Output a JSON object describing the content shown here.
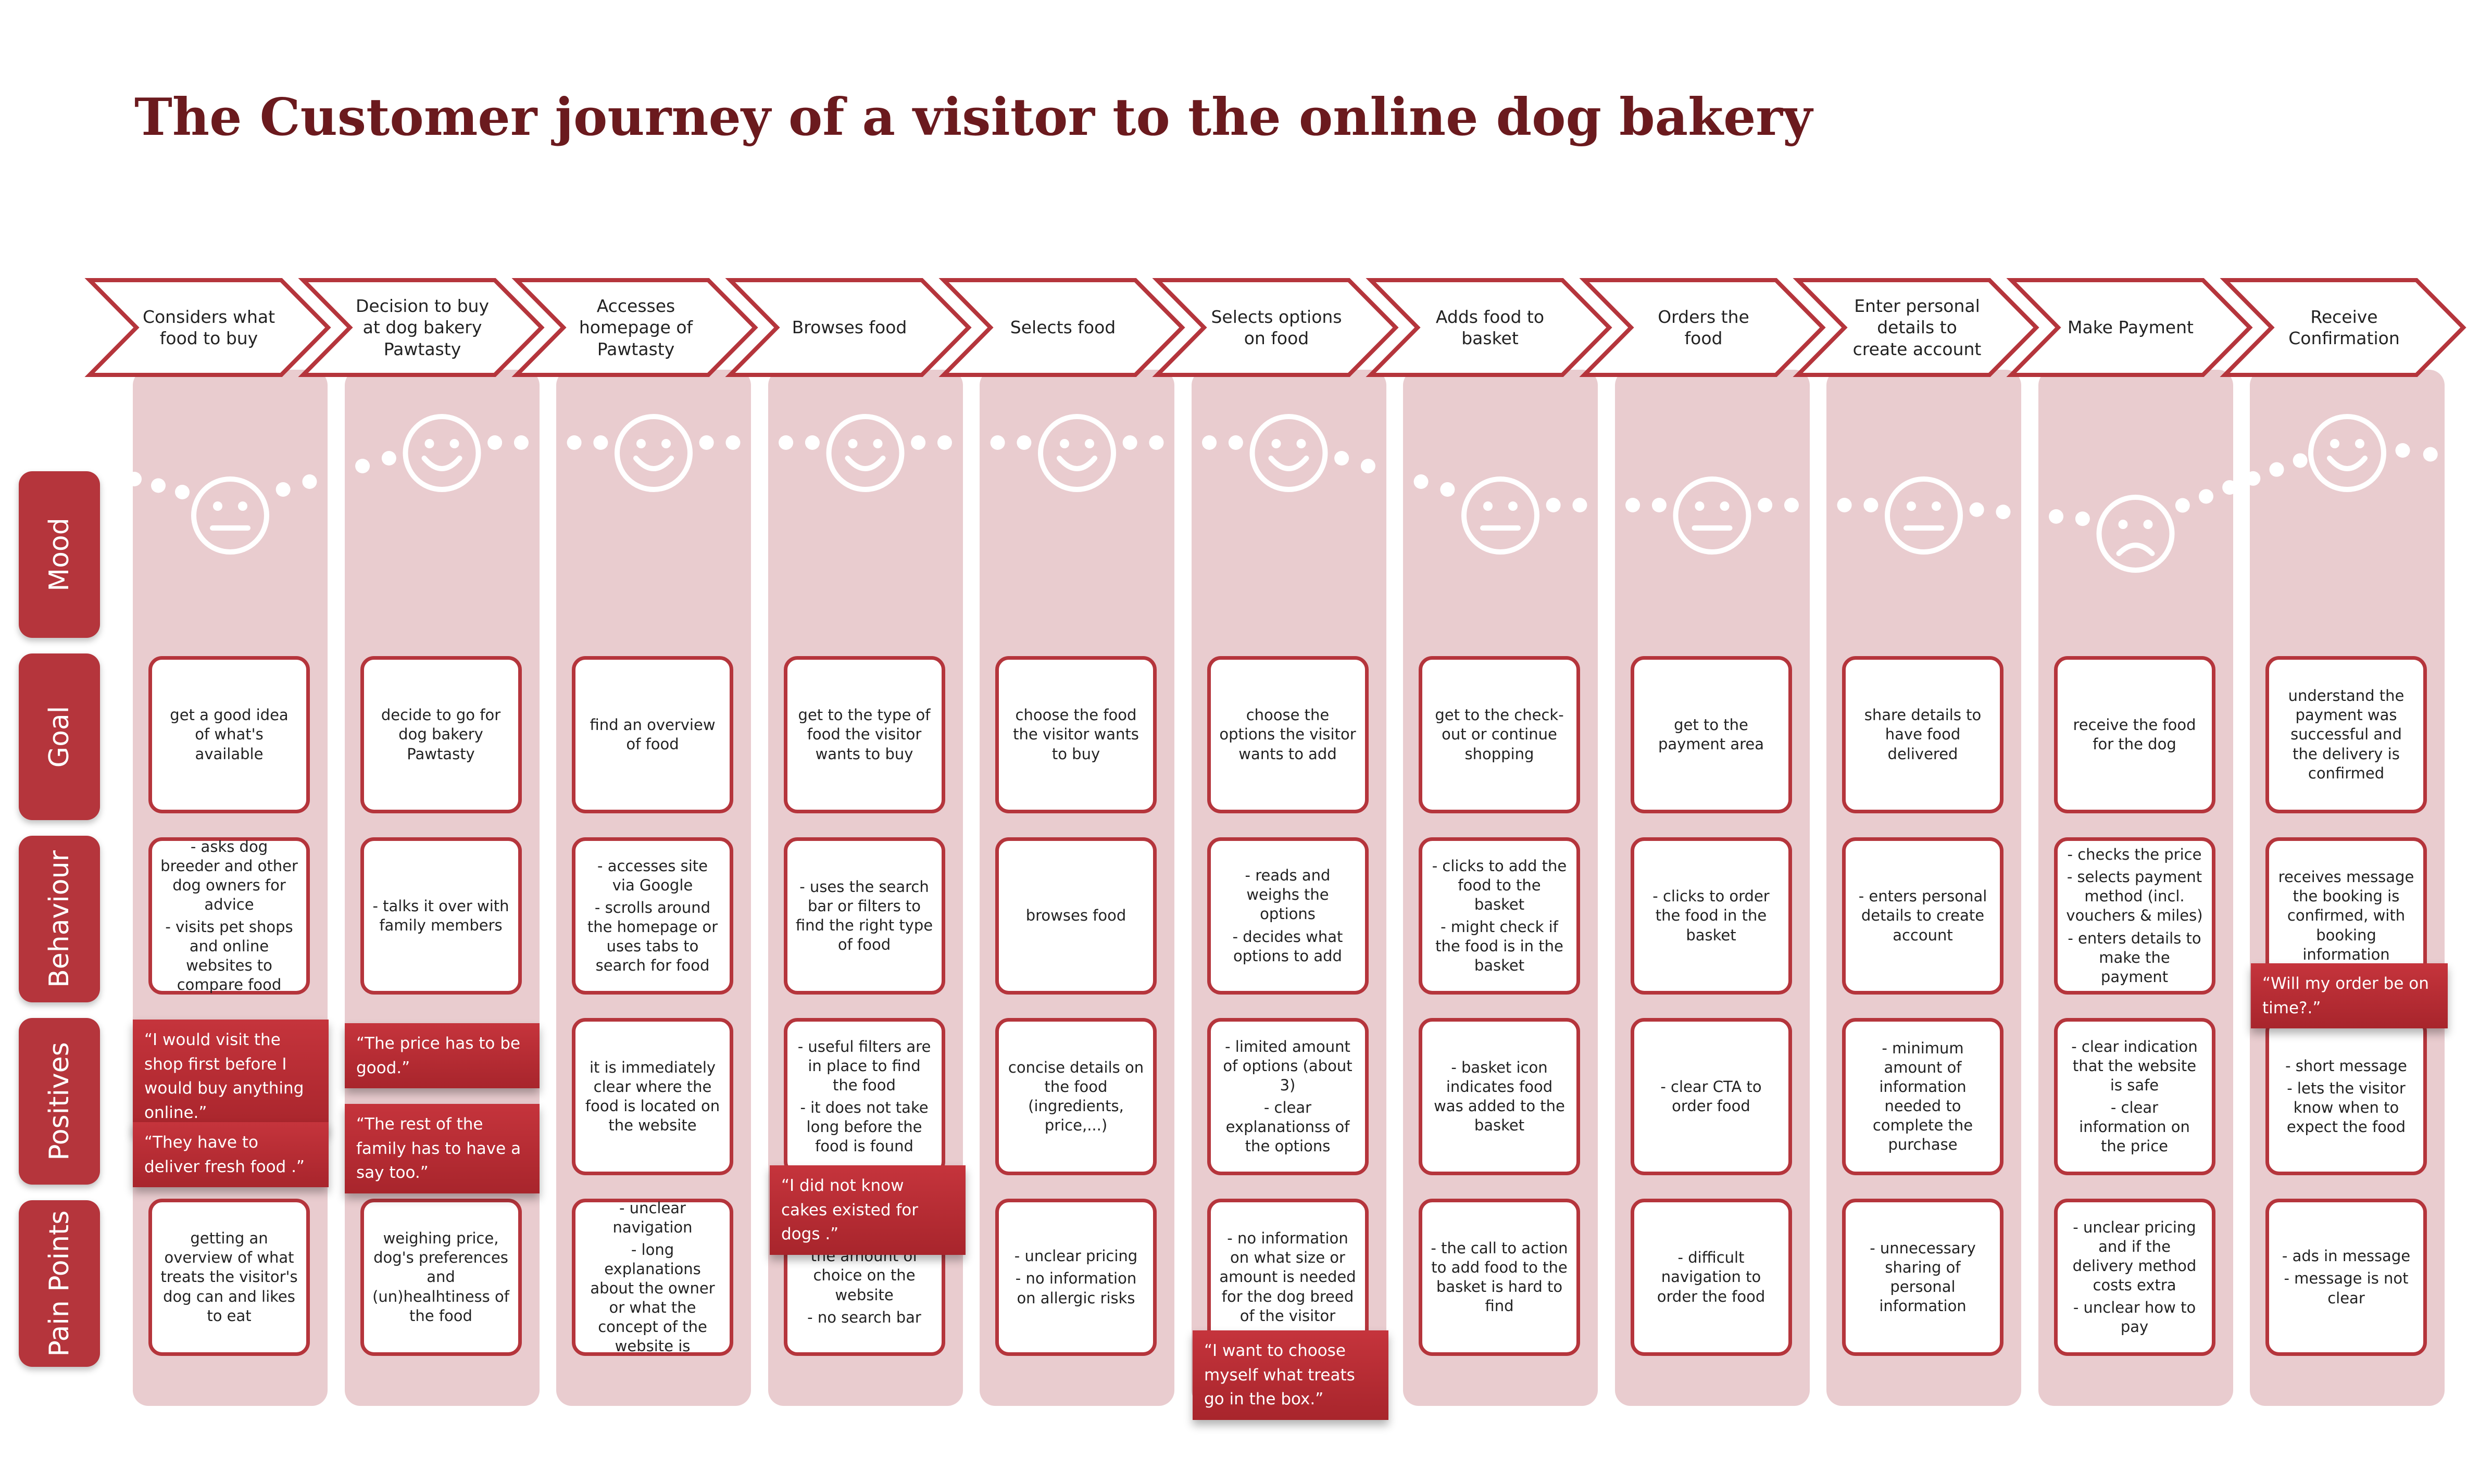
{
  "title": "The Customer journey of a visitor to the online dog bakery",
  "row_labels": [
    "Mood",
    "Goal",
    "Behaviour",
    "Positives",
    "Pain Points"
  ],
  "colors": {
    "accent": "#b5353c",
    "title": "#6b1a1e",
    "band": "#e9cccf",
    "dots": "#ffffff"
  },
  "steps": [
    {
      "label": "Considers what food to buy",
      "mood": "neutral",
      "goal": "get a good idea of what's available",
      "behaviour": [
        "- asks dog breeder and other dog owners for advice",
        "-  visits pet shops and online websites to compare food"
      ],
      "positives": [],
      "pain_points": [
        "getting an overview of what treats the visitor's dog can and likes to eat"
      ]
    },
    {
      "label": "Decision to buy at dog bakery Pawtasty",
      "mood": "happy",
      "goal": "decide to go for dog bakery Pawtasty",
      "behaviour": [
        "- talks it over with family members"
      ],
      "positives": [],
      "pain_points": [
        "weighing price, dog's preferences and (un)healhtiness of the food"
      ]
    },
    {
      "label": "Accesses homepage of Pawtasty",
      "mood": "happy",
      "goal": "find an overview of food",
      "behaviour": [
        "- accesses site via Google",
        "- scrolls around  the homepage or uses tabs to search for food"
      ],
      "positives": [
        "it is immediately clear where the food is located on the website"
      ],
      "pain_points": [
        "- unclear navigation",
        "- long explanations about the owner or what the concept of the website is"
      ]
    },
    {
      "label": "Browses  food",
      "mood": "happy",
      "goal": "get to the type of food the visitor wants to buy",
      "behaviour": [
        "- uses the search bar or filters  to find the right type of food"
      ],
      "positives": [
        "- useful filters are in place to find the food",
        "- it does not take long before the food is found"
      ],
      "pain_points": [
        "- getting lost in the amount of choice on the website",
        "- no search bar"
      ]
    },
    {
      "label": "Selects  food",
      "mood": "happy",
      "goal": "choose the food the visitor wants to buy",
      "behaviour": [
        "browses food"
      ],
      "positives": [
        "concise details on the food (ingredients, price,...)"
      ],
      "pain_points": [
        "- unclear pricing",
        "- no information on allergic risks"
      ]
    },
    {
      "label": "Selects options on food",
      "mood": "happy",
      "goal": "choose the options the visitor wants to add",
      "behaviour": [
        "- reads and weighs the options",
        "- decides what options to add"
      ],
      "positives": [
        "- limited amount of options (about 3)",
        "- clear explanationss of the options"
      ],
      "pain_points": [
        "- no information on what size or amount is needed for the dog breed of the visitor"
      ]
    },
    {
      "label": "Adds food to basket",
      "mood": "neutral",
      "goal": "get to the check-out or continue shopping",
      "behaviour": [
        "- clicks to add the food to the basket",
        "- might check if the food is in the basket"
      ],
      "positives": [
        "- basket icon indicates food was added to the basket"
      ],
      "pain_points": [
        "- the call to action to add food to the basket is hard to find"
      ]
    },
    {
      "label": "Orders the food",
      "mood": "neutral",
      "goal": "get to the payment area",
      "behaviour": [
        "- clicks to order the food in the basket"
      ],
      "positives": [
        "- clear CTA to order food"
      ],
      "pain_points": [
        "- difficult navigation to order the food"
      ]
    },
    {
      "label": "Enter personal details  to create account",
      "mood": "neutral",
      "goal": "share details to have food delivered",
      "behaviour": [
        "- enters personal details to create account"
      ],
      "positives": [
        "- minimum amount of information needed to complete the purchase"
      ],
      "pain_points": [
        "- unnecessary sharing of personal information"
      ]
    },
    {
      "label": "Make Payment",
      "mood": "sad",
      "goal": "receive the food for the dog",
      "behaviour": [
        "- checks the price",
        "- selects payment method (incl. vouchers & miles)",
        "- enters details to make the payment"
      ],
      "positives": [
        "- clear indication that the website is safe",
        "- clear information on the price"
      ],
      "pain_points": [
        "- unclear pricing and if the delivery method costs extra",
        "- unclear how to pay"
      ]
    },
    {
      "label": "Receive Confirmation",
      "mood": "happy",
      "goal": "understand the payment was successful and the delivery is confirmed",
      "behaviour": [
        "receives message the booking is confirmed, with booking information"
      ],
      "positives": [
        "- short message",
        "- lets the visitor know when to expect the food"
      ],
      "pain_points": [
        "- ads in message",
        "- message is not clear"
      ]
    }
  ],
  "quotes": [
    "“I would visit the shop first before I would buy anything online.”",
    "“They have to deliver fresh food .”",
    "“The price has to be good.”",
    "“The rest of the family has to have a say too.”",
    "“I did not know cakes existed for dogs .”",
    "“I want to choose myself what treats go in the box.”",
    "“Will my order be on time?.”"
  ]
}
